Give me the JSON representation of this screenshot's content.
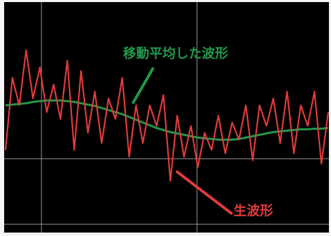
{
  "chart_data": {
    "type": "line",
    "ylim": [
      0,
      335
    ],
    "grid": true,
    "series": [
      {
        "name": "生波形",
        "color": "#e23b3b",
        "values": [
          120,
          225,
          185,
          265,
          195,
          240,
          175,
          215,
          165,
          250,
          120,
          235,
          145,
          205,
          130,
          195,
          165,
          225,
          110,
          185,
          130,
          185,
          155,
          200,
          75,
          170,
          110,
          155,
          95,
          145,
          120,
          170,
          115,
          160,
          135,
          185,
          105,
          185,
          155,
          195,
          130,
          205,
          115,
          185,
          155,
          205,
          100,
          175
        ]
      },
      {
        "name": "移動平均した波形",
        "color": "#1f9a4c",
        "values": [
          185,
          186,
          187,
          188,
          190,
          191,
          192,
          192,
          192,
          191,
          190,
          188,
          186,
          184,
          181,
          178,
          175,
          172,
          168,
          164,
          160,
          156,
          152,
          149,
          146,
          144,
          142,
          140,
          138,
          137,
          136,
          135,
          135,
          135,
          136,
          138,
          140,
          142,
          144,
          146,
          147,
          148,
          149,
          150,
          150,
          151,
          151,
          152
        ]
      }
    ]
  }
}
